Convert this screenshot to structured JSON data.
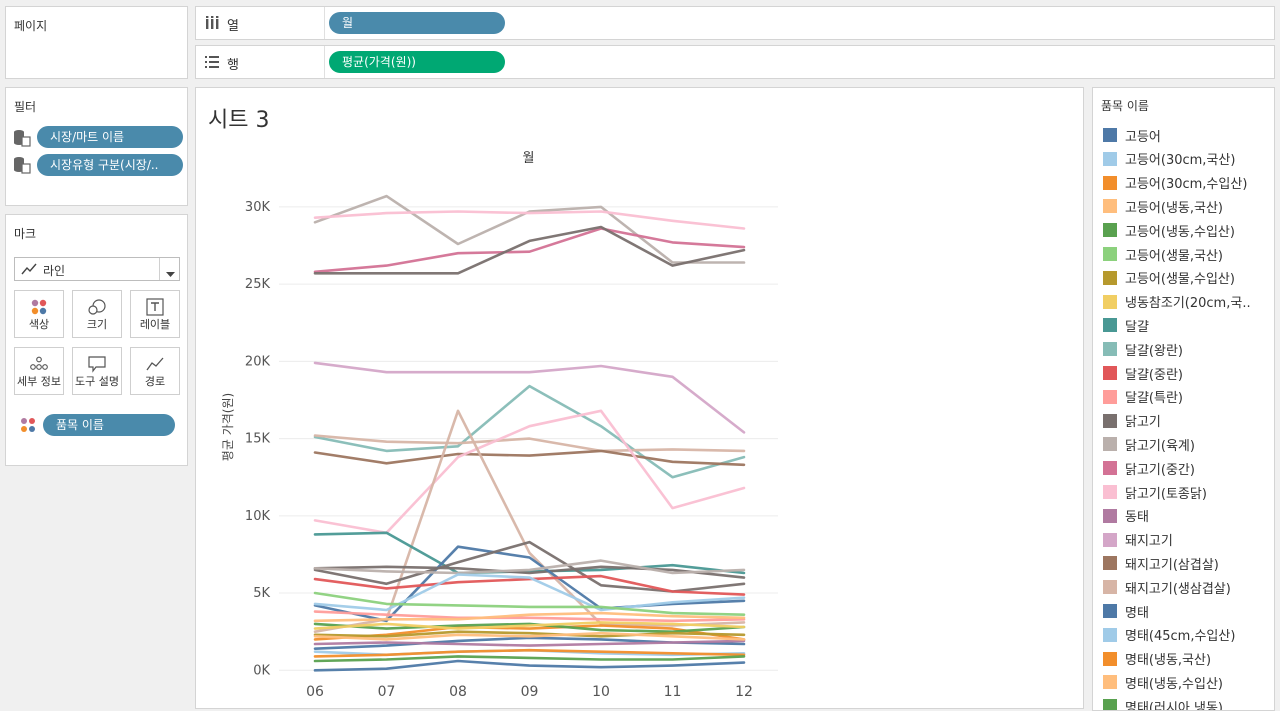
{
  "panels": {
    "pages_title": "페이지",
    "filters_title": "필터",
    "marks_title": "마크",
    "legend_title": "품목 이름"
  },
  "shelves": {
    "columns": {
      "label": "열",
      "pill": "월"
    },
    "rows": {
      "label": "행",
      "pill": "평균(가격(원))"
    }
  },
  "filters": [
    "시장/마트 이름",
    "시장유형 구분(시장/.."
  ],
  "marks": {
    "mark_type": "라인",
    "buttons": [
      "색상",
      "크기",
      "레이블",
      "세부 정보",
      "도구 설명",
      "경로"
    ],
    "color_pill": "품목 이름"
  },
  "sheet_title": "시트 3",
  "legend": [
    {
      "label": "고등어",
      "color": "#4e79a7"
    },
    {
      "label": "고등어(30cm,국산)",
      "color": "#a0cbe8"
    },
    {
      "label": "고등어(30cm,수입산)",
      "color": "#f28e2b"
    },
    {
      "label": "고등어(냉동,국산)",
      "color": "#ffbe7d"
    },
    {
      "label": "고등어(냉동,수입산)",
      "color": "#59a14f"
    },
    {
      "label": "고등어(생물,국산)",
      "color": "#8cd17d"
    },
    {
      "label": "고등어(생물,수입산)",
      "color": "#b6992d"
    },
    {
      "label": "냉동참조기(20cm,국..",
      "color": "#f1ce63"
    },
    {
      "label": "달걀",
      "color": "#499894"
    },
    {
      "label": "달걀(왕란)",
      "color": "#86bcb6"
    },
    {
      "label": "달걀(중란)",
      "color": "#e15759"
    },
    {
      "label": "달걀(특란)",
      "color": "#ff9d9a"
    },
    {
      "label": "닭고기",
      "color": "#79706e"
    },
    {
      "label": "닭고기(육계)",
      "color": "#bab0ac"
    },
    {
      "label": "닭고기(중간)",
      "color": "#d37295"
    },
    {
      "label": "닭고기(토종닭)",
      "color": "#fabfd2"
    },
    {
      "label": "동태",
      "color": "#b07aa1"
    },
    {
      "label": "돼지고기",
      "color": "#d4a6c8"
    },
    {
      "label": "돼지고기(삼겹살)",
      "color": "#9d7660"
    },
    {
      "label": "돼지고기(생삼겹살)",
      "color": "#d7b5a6"
    },
    {
      "label": "명태",
      "color": "#4e79a7"
    },
    {
      "label": "명태(45cm,수입산)",
      "color": "#a0cbe8"
    },
    {
      "label": "명태(냉동,국산)",
      "color": "#f28e2b"
    },
    {
      "label": "명태(냉동,수입산)",
      "color": "#ffbe7d"
    },
    {
      "label": "명태(러시아,냉동)",
      "color": "#59a14f"
    }
  ],
  "chart_data": {
    "type": "line",
    "title": "월",
    "xlabel": "",
    "ylabel": "평균 가격(원)",
    "categories": [
      "06",
      "07",
      "08",
      "09",
      "10",
      "11",
      "12"
    ],
    "ylim": [
      -500,
      32000
    ],
    "yticks": [
      0,
      5000,
      10000,
      15000,
      20000,
      25000,
      30000
    ],
    "ytick_labels": [
      "0K",
      "5K",
      "10K",
      "15K",
      "20K",
      "25K",
      "30K"
    ],
    "series": [
      {
        "name": "닭고기(육계)",
        "color": "#bab0ac",
        "values": [
          29000,
          30700,
          27600,
          29700,
          30000,
          26400,
          26400
        ]
      },
      {
        "name": "닭고기(토종닭)",
        "color": "#fabfd2",
        "values": [
          29300,
          29600,
          29700,
          29600,
          29700,
          29100,
          28600
        ]
      },
      {
        "name": "닭고기(중간)",
        "color": "#d37295",
        "values": [
          25800,
          26200,
          27000,
          27100,
          28600,
          27700,
          27400
        ]
      },
      {
        "name": "닭고기",
        "color": "#79706e",
        "values": [
          25700,
          25700,
          25700,
          27800,
          28700,
          26200,
          27200
        ]
      },
      {
        "name": "돼지고기",
        "color": "#d4a6c8",
        "values": [
          19900,
          19300,
          19300,
          19300,
          19700,
          19000,
          15400
        ]
      },
      {
        "name": "달걀(왕란)",
        "color": "#86bcb6",
        "values": [
          15100,
          14200,
          14500,
          18400,
          15800,
          12500,
          13800
        ]
      },
      {
        "name": "돼지고기(생삼겹살)",
        "color": "#d7b5a6",
        "values": [
          15200,
          14800,
          14700,
          15000,
          14200,
          14300,
          14200
        ]
      },
      {
        "name": "돼지고기(삼겹살)",
        "color": "#9d7660",
        "values": [
          14100,
          13400,
          14000,
          13900,
          14200,
          13500,
          13300
        ]
      },
      {
        "name": "닭고기(토종닭)",
        "color": "#fabfd2",
        "values": [
          9700,
          8900,
          13800,
          15800,
          16800,
          10500,
          11800
        ]
      },
      {
        "name": "돼지고기(생삼겹살)",
        "color": "#d7b5a6",
        "values": [
          2500,
          3300,
          16800,
          7600,
          3000,
          2900,
          3100
        ]
      },
      {
        "name": "달걀",
        "color": "#499894",
        "values": [
          8800,
          8900,
          6300,
          6400,
          6500,
          6800,
          6300
        ]
      },
      {
        "name": "닭고기",
        "color": "#79706e",
        "values": [
          6600,
          6700,
          6600,
          6300,
          6700,
          6500,
          6000
        ]
      },
      {
        "name": "명태",
        "color": "#4e79a7",
        "values": [
          4200,
          3200,
          8000,
          7300,
          4000,
          4300,
          4500
        ]
      },
      {
        "name": "닭고기",
        "color": "#79706e",
        "values": [
          6500,
          5600,
          7000,
          8300,
          5500,
          5100,
          5600
        ]
      },
      {
        "name": "닭고기(육계)",
        "color": "#bab0ac",
        "values": [
          6600,
          6400,
          6300,
          6500,
          7100,
          6300,
          6500
        ]
      },
      {
        "name": "달걀(중란)",
        "color": "#e15759",
        "values": [
          5900,
          5300,
          5700,
          5900,
          6100,
          5100,
          4900
        ]
      },
      {
        "name": "명태(45cm,수입산)",
        "color": "#a0cbe8",
        "values": [
          4300,
          3900,
          6200,
          6000,
          3900,
          4400,
          4700
        ]
      },
      {
        "name": "고등어(생물,국산)",
        "color": "#8cd17d",
        "values": [
          5000,
          4300,
          4200,
          4100,
          4100,
          3700,
          3600
        ]
      },
      {
        "name": "달걀(특란)",
        "color": "#ff9d9a",
        "values": [
          3800,
          3600,
          3400,
          3400,
          3300,
          3200,
          3300
        ]
      },
      {
        "name": "고등어(냉동,국산)",
        "color": "#ffbe7d",
        "values": [
          3200,
          3300,
          3300,
          3600,
          3700,
          3500,
          3400
        ]
      },
      {
        "name": "고등어(30cm,수입산)",
        "color": "#f28e2b",
        "values": [
          2000,
          2300,
          2800,
          2700,
          2900,
          2700,
          2000
        ]
      },
      {
        "name": "고등어(냉동,수입산)",
        "color": "#59a14f",
        "values": [
          3000,
          2700,
          2900,
          3000,
          2600,
          2500,
          2800
        ]
      },
      {
        "name": "고등어(생물,수입산)",
        "color": "#b6992d",
        "values": [
          2300,
          2200,
          2500,
          2400,
          2200,
          2400,
          2300
        ]
      },
      {
        "name": "냉동참조기(20cm,국..",
        "color": "#f1ce63",
        "values": [
          2700,
          3000,
          2700,
          2900,
          3100,
          3000,
          2800
        ]
      },
      {
        "name": "고등어",
        "color": "#4e79a7",
        "values": [
          1400,
          1600,
          1900,
          2100,
          2000,
          1800,
          1700
        ]
      },
      {
        "name": "고등어(30cm,국산)",
        "color": "#a0cbe8",
        "values": [
          1200,
          1000,
          1200,
          1300,
          1100,
          1000,
          1100
        ]
      },
      {
        "name": "동태",
        "color": "#b07aa1",
        "values": [
          1700,
          1800,
          1700,
          1600,
          1700,
          1800,
          1900
        ]
      },
      {
        "name": "명태(냉동,국산)",
        "color": "#f28e2b",
        "values": [
          900,
          1000,
          1200,
          1300,
          1200,
          1100,
          1000
        ]
      },
      {
        "name": "명태(냉동,수입산)",
        "color": "#ffbe7d",
        "values": [
          2200,
          2000,
          2300,
          2200,
          2400,
          2200,
          2000
        ]
      },
      {
        "name": "명태(러시아,냉동)",
        "color": "#59a14f",
        "values": [
          600,
          700,
          900,
          800,
          700,
          700,
          900
        ]
      },
      {
        "name": "고등어",
        "color": "#4e79a7",
        "values": [
          0,
          100,
          600,
          300,
          200,
          300,
          500
        ]
      }
    ]
  }
}
